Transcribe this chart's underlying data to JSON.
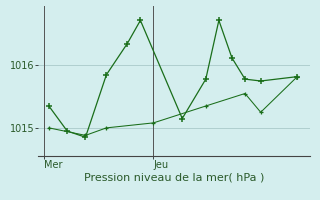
{
  "title": "",
  "xlabel": "Pression niveau de la mer( hPa )",
  "bg_color": "#d4eeee",
  "line_color": "#1a6e1a",
  "grid_color": "#aacaca",
  "xtick_labels": [
    "Mer",
    "Jeu"
  ],
  "xtick_positions": [
    0.0,
    0.42
  ],
  "ytick_labels": [
    "1015",
    "1016"
  ],
  "ytick_positions": [
    1015.0,
    1016.0
  ],
  "ylim": [
    1014.55,
    1016.95
  ],
  "xlim": [
    -0.02,
    1.02
  ],
  "vline_positions": [
    0.0,
    0.42
  ],
  "series1_x": [
    0.02,
    0.09,
    0.16,
    0.24,
    0.32,
    0.37,
    0.53,
    0.62,
    0.67,
    0.72,
    0.77,
    0.83,
    0.97
  ],
  "series1_y": [
    1015.35,
    1014.95,
    1014.85,
    1015.85,
    1016.35,
    1016.72,
    1015.15,
    1015.78,
    1016.72,
    1016.12,
    1015.78,
    1015.75,
    1015.82
  ],
  "series2_x": [
    0.02,
    0.16,
    0.24,
    0.42,
    0.62,
    0.77,
    0.83,
    0.97
  ],
  "series2_y": [
    1015.0,
    1014.88,
    1015.0,
    1015.08,
    1015.35,
    1015.55,
    1015.25,
    1015.82
  ],
  "xlabel_fontsize": 8,
  "tick_fontsize": 7,
  "spine_color": "#888888"
}
